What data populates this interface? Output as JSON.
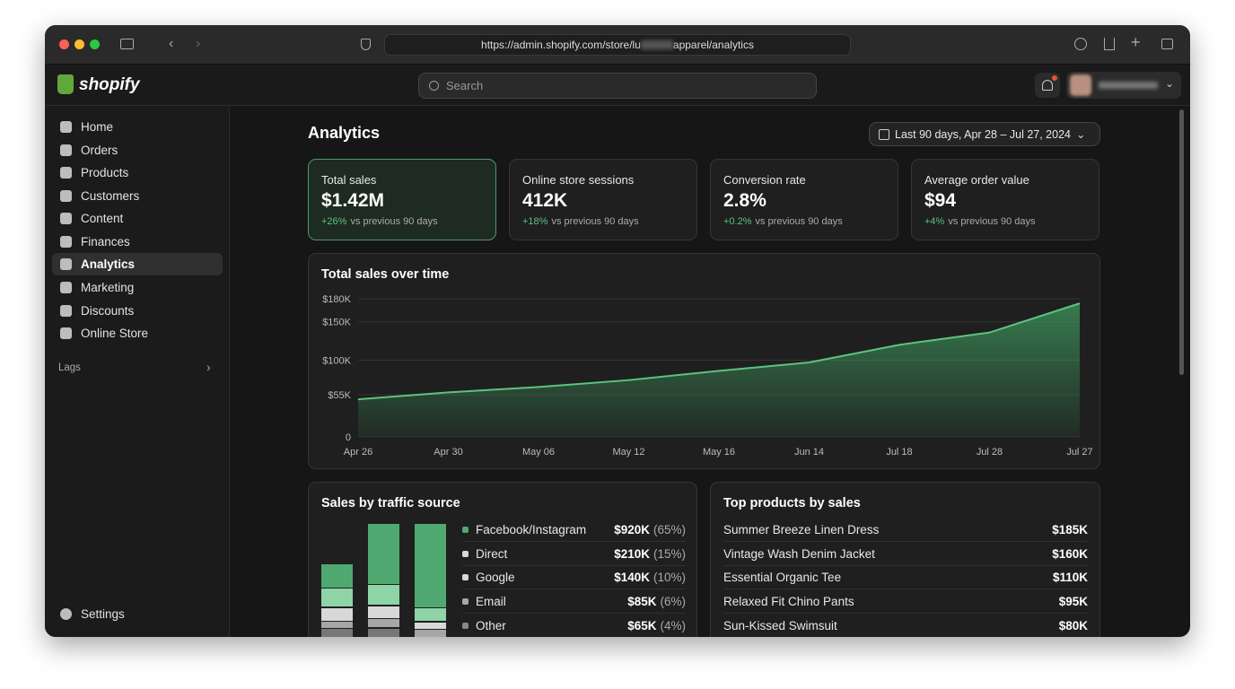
{
  "browser": {
    "url_prefix": "https://admin.shopify.com/store/lu",
    "url_suffix": "apparel/analytics"
  },
  "header": {
    "logo": "shopify",
    "search_placeholder": "Search"
  },
  "sidebar": {
    "items": [
      "Home",
      "Orders",
      "Products",
      "Customers",
      "Content",
      "Finances",
      "Analytics",
      "Marketing",
      "Discounts",
      "Online Store"
    ],
    "section": "Lags",
    "settings": "Settings"
  },
  "page": {
    "title": "Analytics",
    "date_range": "Last 90 days, Apr 28 – Jul 27, 2024"
  },
  "kpis": [
    {
      "label": "Total sales",
      "value": "$1.42M",
      "change": "+26%",
      "comparison": "vs previous 90 days"
    },
    {
      "label": "Online store sessions",
      "value": "412K",
      "change": "+18%",
      "comparison": "vs previous 90 days"
    },
    {
      "label": "Conversion rate",
      "value": "2.8%",
      "change": "+0.2%",
      "comparison": "vs previous 90 days"
    },
    {
      "label": "Average order value",
      "value": "$94",
      "change": "+4%",
      "comparison": "vs previous 90 days"
    }
  ],
  "sales_chart": {
    "type": "area",
    "title": "Total sales over time",
    "categories": [
      "Apr 26",
      "Apr 30",
      "May 06",
      "May 12",
      "May 16",
      "Jun 14",
      "Jul 18",
      "Jul 28",
      "Jul 27"
    ],
    "values": [
      49000,
      58000,
      65000,
      74000,
      86000,
      97000,
      120000,
      136000,
      174000
    ],
    "color": "#5cc47f",
    "ylim": [
      0,
      180000
    ],
    "yticks": [
      {
        "value": 180000,
        "label": "$180K"
      },
      {
        "value": 150000,
        "label": "$150K"
      },
      {
        "value": 100000,
        "label": "$100K"
      },
      {
        "value": 55000,
        "label": "$55K"
      },
      0
    ],
    "grid": true
  },
  "traffic": {
    "title": "Sales by traffic source",
    "rows": [
      {
        "name": "Facebook/Instagram",
        "value": "$920K",
        "share": "(65%)"
      },
      {
        "name": "Direct",
        "value": "$210K",
        "share": "(15%)"
      },
      {
        "name": "Google",
        "value": "$140K",
        "share": "(10%)"
      },
      {
        "name": "Email",
        "value": "$85K",
        "share": "(6%)"
      },
      {
        "name": "Other",
        "value": "$65K",
        "share": "(4%)"
      }
    ]
  },
  "products": {
    "title": "Top products by sales",
    "rows": [
      {
        "name": "Summer Breeze Linen Dress",
        "value": "$185K"
      },
      {
        "name": "Vintage Wash Denim Jacket",
        "value": "$160K"
      },
      {
        "name": "Essential Organic Tee",
        "value": "$110K"
      },
      {
        "name": "Relaxed Fit Chino Pants",
        "value": "$95K"
      },
      {
        "name": "Sun-Kissed Swimsuit",
        "value": "$80K"
      }
    ]
  }
}
